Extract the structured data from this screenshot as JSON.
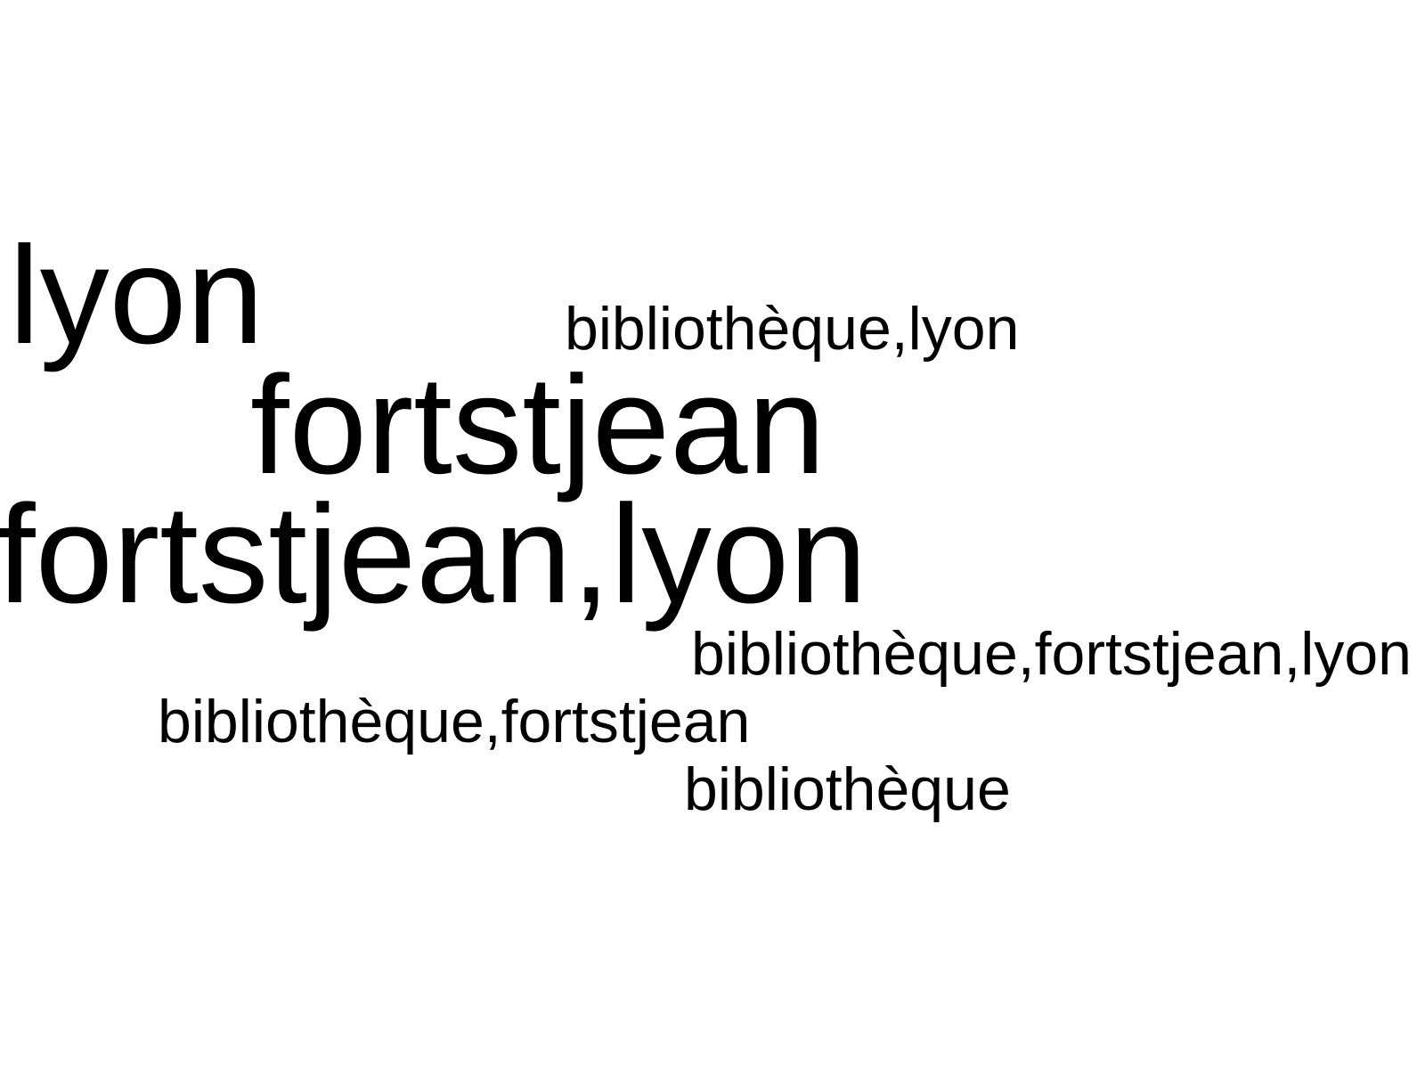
{
  "word_cloud": {
    "text_color": "#000000",
    "background_color": "#ffffff",
    "words": [
      {
        "text": "lyon"
      },
      {
        "text": "bibliothèque,lyon"
      },
      {
        "text": "fortstjean"
      },
      {
        "text": "fortstjean,lyon"
      },
      {
        "text": "bibliothèque,fortstjean,lyon"
      },
      {
        "text": "bibliothèque,fortstjean"
      },
      {
        "text": "bibliothèque"
      }
    ]
  }
}
